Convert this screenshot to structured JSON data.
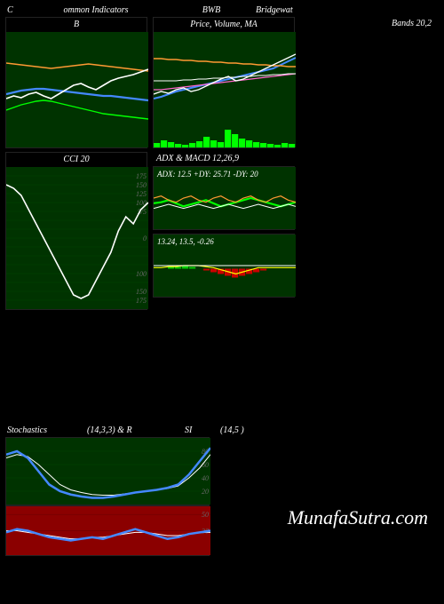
{
  "header": {
    "c": "C",
    "ind": "ommon Indicators",
    "sym": "BWB",
    "name": "Bridgewat"
  },
  "bbands": {
    "title": "B",
    "right_title": "Bands 20,2",
    "bg": "#003300",
    "upper": [
      42,
      45,
      48,
      50,
      52,
      53,
      52,
      50,
      48,
      46,
      44,
      42,
      40,
      38,
      37,
      36,
      35,
      34,
      33,
      32
    ],
    "mid": [
      60,
      62,
      64,
      65,
      66,
      66,
      65,
      64,
      63,
      62,
      61,
      60,
      59,
      58,
      58,
      57,
      56,
      55,
      54,
      53
    ],
    "lower": [
      95,
      94,
      93,
      92,
      91,
      90,
      89,
      90,
      91,
      92,
      93,
      94,
      93,
      92,
      91,
      90,
      89,
      88,
      87,
      86
    ],
    "price": [
      55,
      58,
      56,
      60,
      62,
      58,
      55,
      60,
      65,
      70,
      72,
      68,
      65,
      70,
      75,
      78,
      80,
      82,
      85,
      88
    ],
    "colors": {
      "upper": "#00ff00",
      "mid": "#4488ff",
      "lower": "#ff9933",
      "price": "#ffffff"
    }
  },
  "price_ma": {
    "title": "Price, Volume, MA",
    "bg": "#003300",
    "ma1": [
      30,
      32,
      35,
      38,
      40,
      42,
      44,
      46,
      48,
      50,
      52,
      54,
      56,
      58,
      60,
      62,
      64,
      68,
      72,
      76
    ],
    "ma2": [
      40,
      40,
      41,
      42,
      43,
      44,
      45,
      46,
      47,
      48,
      49,
      50,
      51,
      52,
      53,
      54,
      55,
      56,
      57,
      58
    ],
    "ma3": [
      50,
      50,
      50,
      50,
      51,
      51,
      52,
      52,
      53,
      53,
      54,
      54,
      55,
      55,
      56,
      56,
      57,
      57,
      58,
      58
    ],
    "ma4": [
      75,
      75,
      74,
      74,
      73,
      73,
      72,
      72,
      71,
      71,
      70,
      70,
      69,
      69,
      68,
      68,
      67,
      67,
      66,
      66
    ],
    "price": [
      35,
      38,
      36,
      40,
      42,
      38,
      40,
      44,
      48,
      52,
      55,
      50,
      52,
      56,
      60,
      64,
      68,
      72,
      76,
      80
    ],
    "vol": [
      5,
      8,
      6,
      4,
      3,
      5,
      7,
      12,
      8,
      6,
      20,
      15,
      10,
      8,
      6,
      5,
      4,
      3,
      5,
      4
    ],
    "colors": {
      "ma1": "#4488ff",
      "ma2": "#ff66cc",
      "ma3": "#ffffff",
      "ma4": "#ff9933",
      "price": "#ffffff",
      "vol": "#00ff00"
    }
  },
  "cci": {
    "title": "CCI 20",
    "bg": "#003300",
    "levels": [
      175,
      150,
      125,
      100,
      75,
      50,
      25,
      0,
      -25,
      -50,
      -75,
      -100,
      -125,
      -150,
      -175
    ],
    "level_labels": [
      "175",
      "150",
      "125",
      "100",
      "5/5",
      "",
      "",
      "0",
      "",
      "",
      "",
      "100",
      "",
      "150",
      "175"
    ],
    "data": [
      150,
      140,
      120,
      80,
      40,
      0,
      -40,
      -80,
      -120,
      -160,
      -170,
      -160,
      -120,
      -80,
      -40,
      20,
      60,
      40,
      80,
      100
    ],
    "color": "#ffffff"
  },
  "adx_macd": {
    "title_prefix": "ADX  & MACD 12,26,9",
    "adx_label": "ADX: 12.5 +DY: 25.71 -DY: 20",
    "macd_label": "13.24, 13.5, -0.26",
    "bg": "#003300",
    "adx": {
      "l1": [
        25,
        26,
        28,
        25,
        22,
        24,
        26,
        28,
        25,
        22,
        24,
        26,
        28,
        30,
        28,
        26,
        24,
        22,
        24,
        26
      ],
      "l2": [
        30,
        32,
        28,
        26,
        30,
        32,
        28,
        26,
        30,
        32,
        28,
        26,
        30,
        32,
        28,
        26,
        30,
        32,
        28,
        26
      ],
      "l3": [
        20,
        22,
        24,
        22,
        20,
        22,
        24,
        22,
        20,
        22,
        24,
        22,
        20,
        22,
        24,
        22,
        20,
        22,
        24,
        22
      ],
      "colors": {
        "l1": "#00ff00",
        "l2": "#ff9933",
        "l3": "#ffffff"
      }
    },
    "macd": {
      "l1": [
        28,
        28,
        29,
        29,
        30,
        30,
        30,
        29,
        28,
        26,
        24,
        22,
        24,
        26,
        28,
        28,
        28,
        28,
        28,
        28
      ],
      "l2": [
        30,
        30,
        30,
        30,
        30,
        30,
        30,
        30,
        30,
        30,
        30,
        30,
        30,
        30,
        30,
        30,
        30,
        30,
        30,
        30
      ],
      "hist": [
        0,
        0,
        1,
        1,
        2,
        1,
        0,
        -1,
        -2,
        -3,
        -4,
        -5,
        -4,
        -3,
        -2,
        -1,
        0,
        0,
        0,
        0
      ],
      "colors": {
        "l1": "#ffff00",
        "l2": "#ffffff",
        "hist_pos": "#00cc00",
        "hist_neg": "#cc0000"
      }
    }
  },
  "stoch": {
    "header": {
      "s1": "Stochastics",
      "s2": "(14,3,3) & R",
      "s3": "SI",
      "s4": "(14,5                                    )"
    },
    "top": {
      "bg": "#003300",
      "levels": [
        80,
        60,
        40,
        20
      ],
      "k": [
        75,
        80,
        70,
        50,
        30,
        20,
        15,
        12,
        10,
        10,
        12,
        15,
        18,
        20,
        22,
        25,
        30,
        45,
        65,
        85
      ],
      "d": [
        70,
        75,
        72,
        60,
        45,
        30,
        22,
        18,
        15,
        14,
        14,
        16,
        18,
        20,
        22,
        24,
        28,
        40,
        55,
        75
      ],
      "colors": {
        "k": "#4488ff",
        "d": "#ffffff"
      }
    },
    "bot": {
      "bg": "#8b0000",
      "levels": [
        50,
        30
      ],
      "k": [
        28,
        32,
        30,
        26,
        22,
        20,
        18,
        20,
        22,
        20,
        24,
        28,
        32,
        28,
        24,
        20,
        22,
        26,
        28,
        30
      ],
      "d": [
        30,
        30,
        28,
        26,
        24,
        22,
        20,
        20,
        22,
        22,
        24,
        26,
        28,
        28,
        26,
        24,
        24,
        26,
        28,
        28
      ],
      "colors": {
        "k": "#4488ff",
        "d": "#ffffff"
      }
    }
  },
  "watermark": "MunafaSutra.com"
}
